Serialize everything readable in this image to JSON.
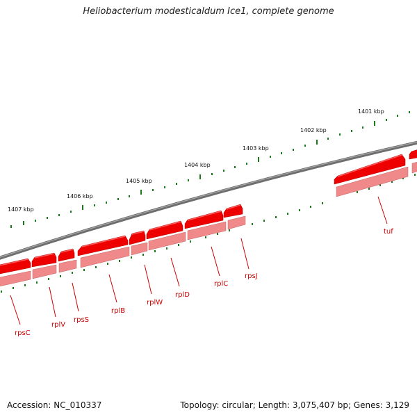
{
  "title": "Heliobacterium modesticaldum Ice1, complete genome",
  "footer": {
    "accession": "Accession: NC_010337",
    "topology": "Topology: circular; Length: 3,075,407 bp; Genes: 3,129"
  },
  "scale_labels": [
    "1407 kbp",
    "1406 kbp",
    "1405 kbp",
    "1404 kbp",
    "1403 kbp",
    "1402 kbp",
    "1401 kbp"
  ],
  "genes": [
    "rpsC",
    "rplV",
    "rpsS",
    "rplB",
    "rplW",
    "rplD",
    "rplC",
    "rpsJ",
    "tuf"
  ],
  "colors": {
    "backbone": "#808080",
    "gene_fill": "#ee0000",
    "gene_highlight": "#ff3a3a",
    "gene_shadow": "#b00000",
    "gene_light": "#f08a8a",
    "label": "#cc0000",
    "tick": "#1a7a1a"
  }
}
